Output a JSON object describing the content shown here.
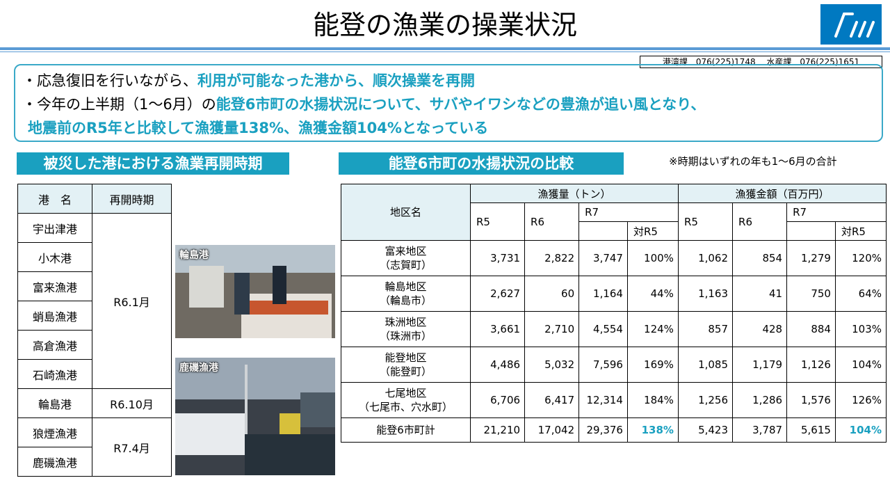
{
  "title": "能登の漁業の操業状況",
  "contact": "港湾課　076(225)1748　 水産課　076(225)1651",
  "summary": {
    "line1_prefix": "・応急復旧を行いながら、",
    "line1_hl": "利用が可能なった港から、順次操業を再開",
    "line2_prefix": "・今年の上半期（1～6月）の",
    "line2_hl": "能登6市町の水揚状況について、サバやイワシなどの豊漁が追い風となり、",
    "line3_hl": "地震前のR5年と比較して漁獲量138%、漁獲金額104%となっている"
  },
  "left_section": {
    "heading": "被災した港における漁業再開時期",
    "col_port": "港　名",
    "col_time": "再開時期",
    "ports": [
      "宇出津港",
      "小木港",
      "富来漁港",
      "蛸島漁港",
      "高倉漁港",
      "石崎漁港",
      "輪島港",
      "狼煙漁港",
      "鹿磯漁港"
    ],
    "times": [
      "R6.1月",
      "R6.10月",
      "R7.4月"
    ]
  },
  "photos": [
    {
      "label": "輪島港"
    },
    {
      "label": "鹿磯漁港"
    }
  ],
  "right_section": {
    "heading": "能登6市町の水揚状況の比較",
    "note": "※時期はいずれの年も1～6月の合計",
    "col_area": "地区名",
    "group_catch": "漁獲量（トン）",
    "group_value": "漁獲金額（百万円）",
    "years": [
      "R5",
      "R6",
      "R7"
    ],
    "ratio": "対R5",
    "rows": [
      {
        "area": "富来地区",
        "sub": "（志賀町）",
        "catch": [
          "3,731",
          "2,822",
          "3,747",
          "100%"
        ],
        "value": [
          "1,062",
          "854",
          "1,279",
          "120%"
        ]
      },
      {
        "area": "輪島地区",
        "sub": "（輪島市）",
        "catch": [
          "2,627",
          "60",
          "1,164",
          "44%"
        ],
        "value": [
          "1,163",
          "41",
          "750",
          "64%"
        ]
      },
      {
        "area": "珠洲地区",
        "sub": "（珠洲市）",
        "catch": [
          "3,661",
          "2,710",
          "4,554",
          "124%"
        ],
        "value": [
          "857",
          "428",
          "884",
          "103%"
        ]
      },
      {
        "area": "能登地区",
        "sub": "（能登町）",
        "catch": [
          "4,486",
          "5,032",
          "7,596",
          "169%"
        ],
        "value": [
          "1,085",
          "1,179",
          "1,126",
          "104%"
        ]
      },
      {
        "area": "七尾地区",
        "sub": "（七尾市、穴水町）",
        "catch": [
          "6,706",
          "6,417",
          "12,314",
          "184%"
        ],
        "value": [
          "1,256",
          "1,286",
          "1,576",
          "126%"
        ]
      }
    ],
    "total": {
      "area": "能登6市町計",
      "catch": [
        "21,210",
        "17,042",
        "29,376",
        "138%"
      ],
      "value": [
        "5,423",
        "3,787",
        "5,615",
        "104%"
      ]
    }
  },
  "colors": {
    "accent": "#1aa0c0",
    "rule": "#5b9bd5",
    "header_fill": "#e3f1f5",
    "logo": "#0079c1"
  }
}
